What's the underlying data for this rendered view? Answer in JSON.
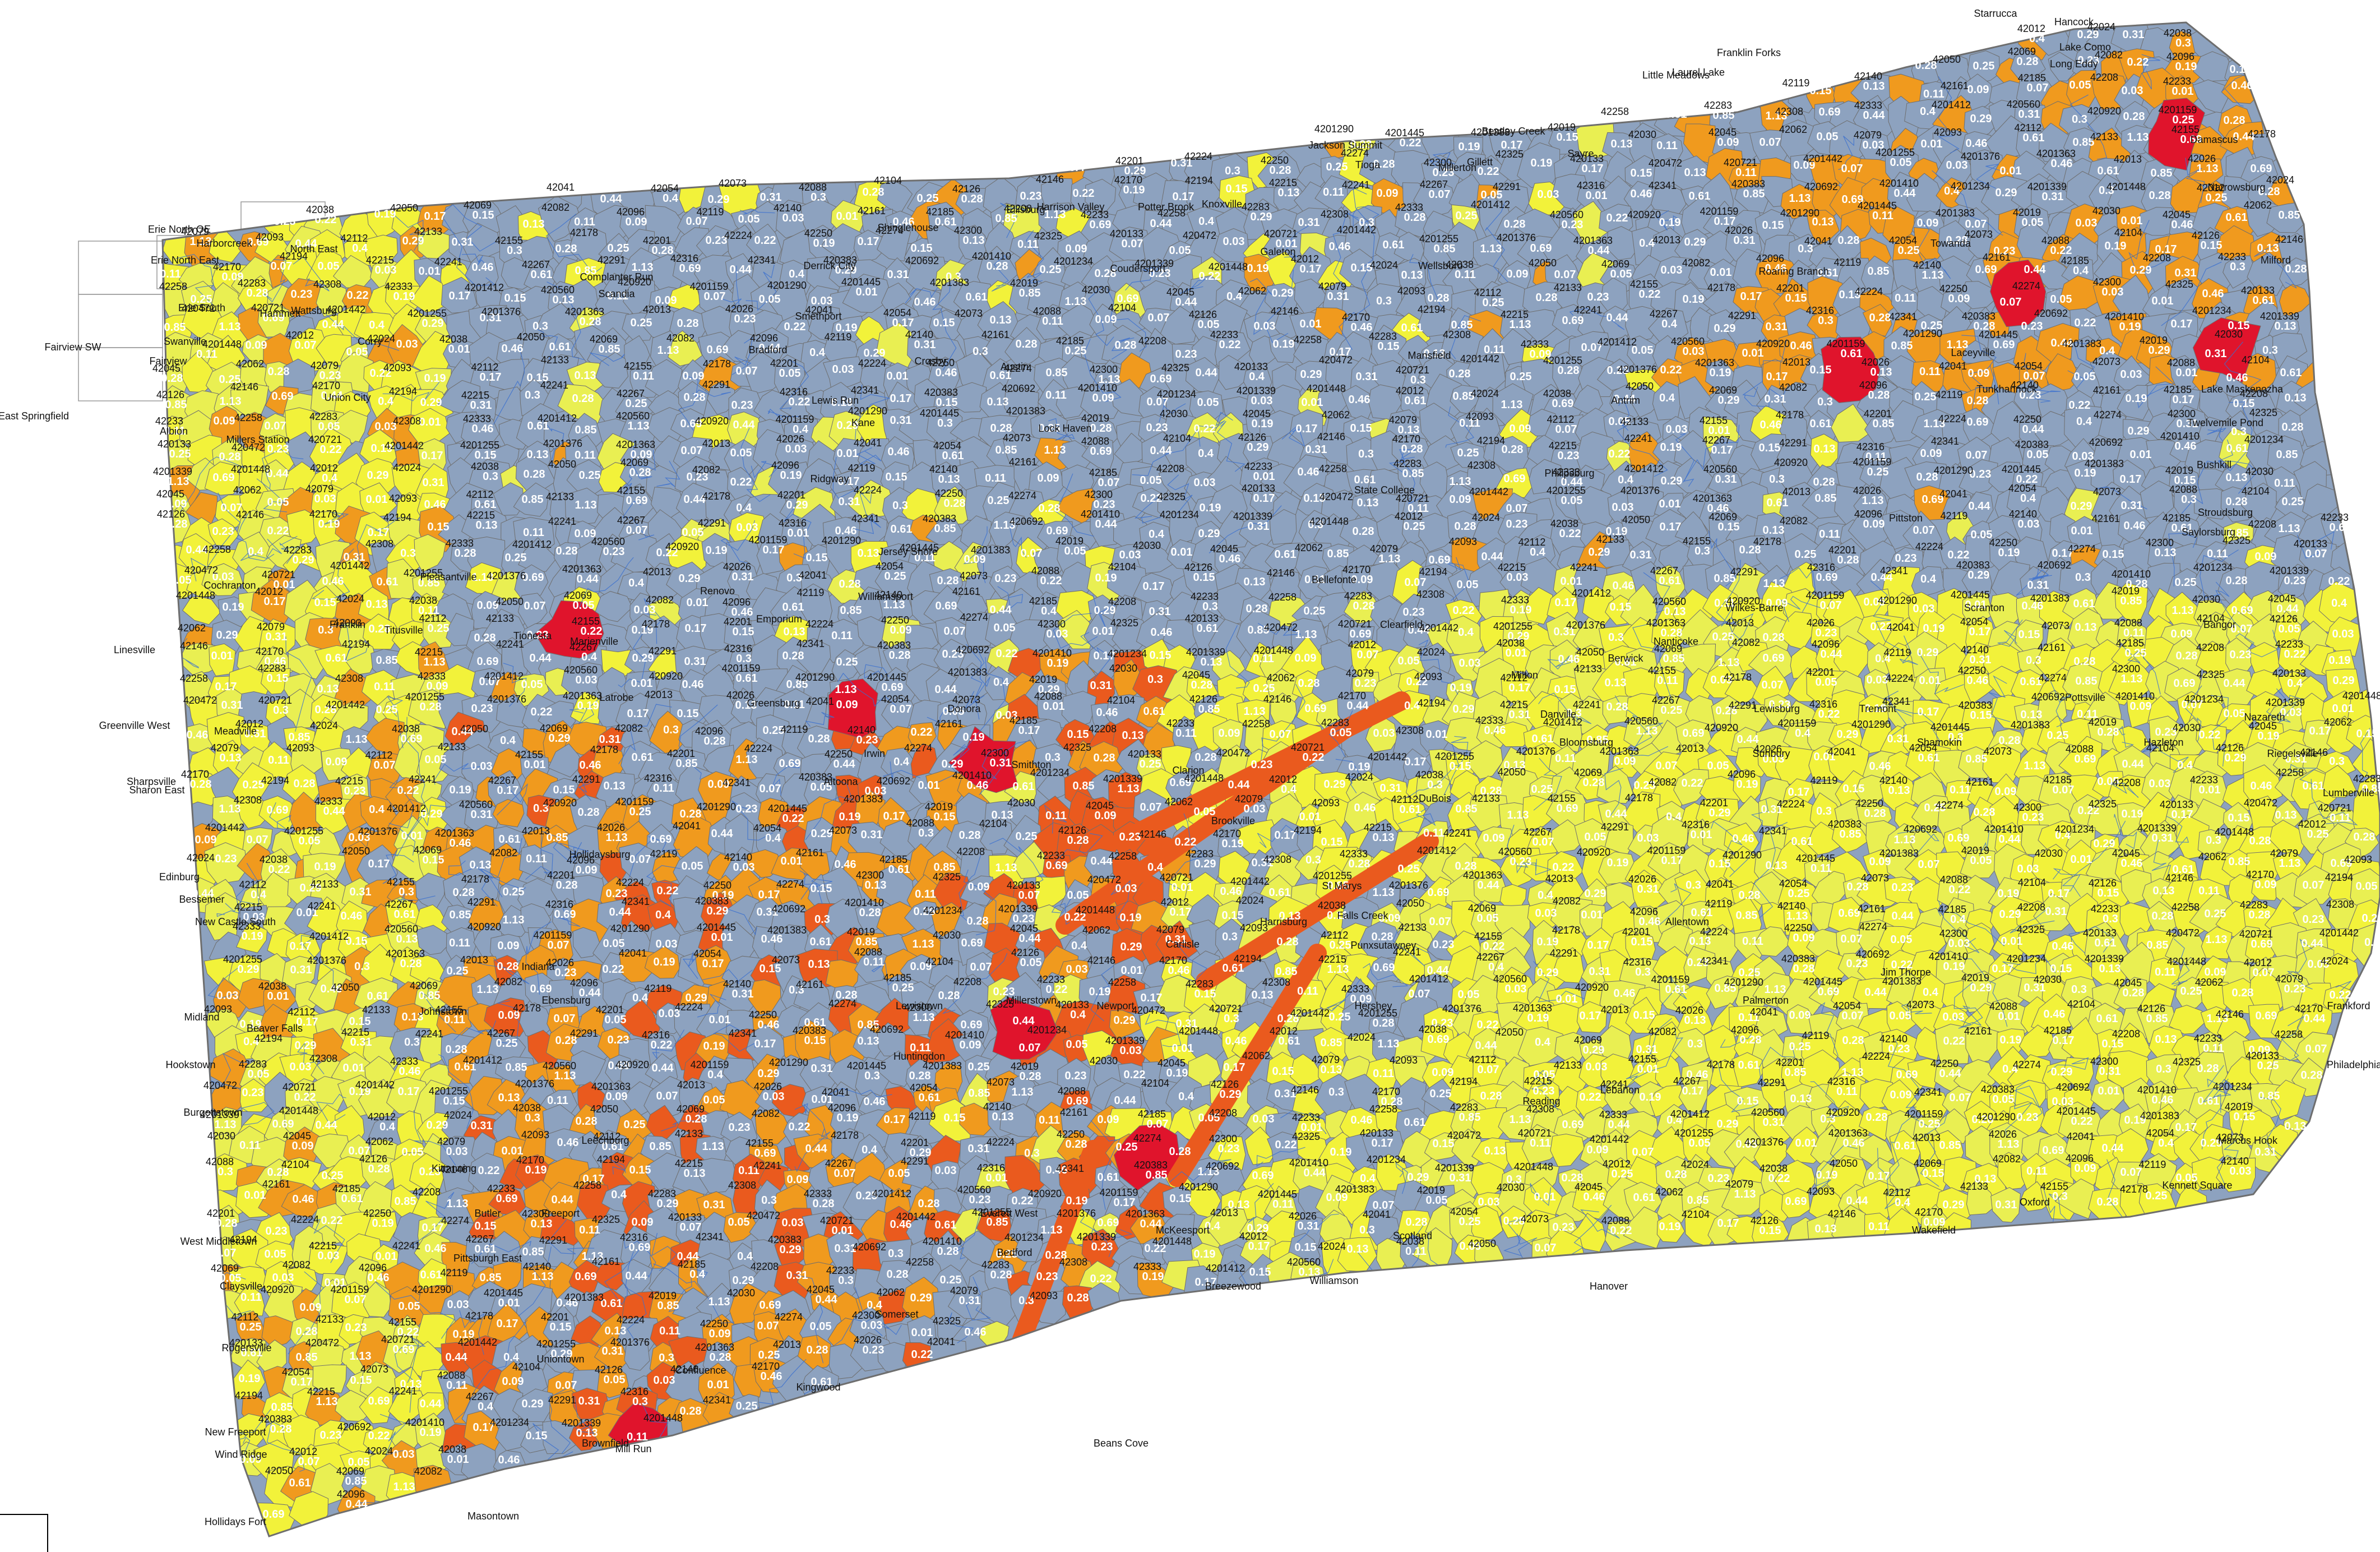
{
  "map": {
    "colors": {
      "background": "#ffffff",
      "outline": "#6e6e6e",
      "stream": "#3a6fd0",
      "class_grey": "#8da2bf",
      "class_yellow": "#f2f23a",
      "class_yellow_light": "#e9ef52",
      "class_orange": "#f09a1e",
      "class_orange_red": "#ea5a1e",
      "class_red": "#e0142c",
      "grid": "#9a9a9a"
    },
    "place_labels": [
      "Erie North OE",
      "Erie North East",
      "Harborcreek",
      "North East",
      "Erie South",
      "Fairview",
      "Fairview SW",
      "Swanville",
      "Hammett",
      "Wattsburg",
      "East Springfield",
      "Albion",
      "Millers Station",
      "Union City",
      "Corry",
      "Complanter Run",
      "Scandia",
      "Derrick City",
      "Shinglehouse",
      "Ellisburg",
      "Harrison Valley",
      "Potter Brook",
      "Knoxville",
      "Jackson Summit",
      "Tioga",
      "Millerton",
      "Gillett",
      "Bentley Creek",
      "Sayre",
      "Little Meadows",
      "Laurel Lake",
      "Franklin Forks",
      "Starrucca",
      "Hancock",
      "Lake Como",
      "Long Eddy",
      "Damascus",
      "Narrowsburg",
      "Milford",
      "Lake Maskenozha",
      "Twelvemile Pond",
      "Bushkill",
      "Stroudsburg",
      "Saylorsburg",
      "Bangor",
      "Nazareth",
      "Riegelsville",
      "Lumberville",
      "Frankford",
      "Philadelphia",
      "Marcus Hook",
      "Kennett Square",
      "Oxford",
      "Wakefield",
      "Hanover",
      "Williamson",
      "Scotland",
      "Breezewood",
      "Beans Cove",
      "Everett West",
      "Bedford",
      "Somerset",
      "Kingwood",
      "Confluence",
      "Brownfield",
      "Uniontown",
      "Mill Run",
      "Masontown",
      "Hollidays Fort",
      "New Freeport",
      "Wind Ridge",
      "Rogersville",
      "Claysville",
      "West Middletown",
      "Burgettstown",
      "Hookstown",
      "Midland",
      "Beaver Falls",
      "New Castle South",
      "Bessemer",
      "Edinburg",
      "Sharon East",
      "Sharpsville",
      "Greenville West",
      "Linesville",
      "Meadville",
      "Cochranton",
      "Franklin",
      "Titusville",
      "Pleasantville",
      "Tionesta",
      "Marienville",
      "Ridgway",
      "Kane",
      "Lewis Run",
      "Bradford",
      "Smethport",
      "Crosby",
      "Austin",
      "Coudersport",
      "Galeton",
      "Wellsboro",
      "Mansfield",
      "Antrim",
      "Roaring Branch",
      "Towanda",
      "Laceyville",
      "Tunkhannock",
      "Scranton",
      "Pittston",
      "Wilkes-Barre",
      "Nanticoke",
      "Berwick",
      "Bloomsburg",
      "Danville",
      "Milton",
      "Lewisburg",
      "Sunbury",
      "Shamokin",
      "Tremont",
      "Pottsville",
      "Hazleton",
      "Jim Thorpe",
      "Palmerton",
      "Allentown",
      "Reading",
      "Lebanon",
      "Hershey",
      "Harrisburg",
      "Carlisle",
      "Newport",
      "Millerstown",
      "Lewistown",
      "Huntingdon",
      "Altoona",
      "Hollidaysburg",
      "Johnstown",
      "Ebensburg",
      "Indiana",
      "Kittanning",
      "Butler",
      "Leechburg",
      "Freeport",
      "Pittsburgh East",
      "McKeesport",
      "Latrobe",
      "Greensburg",
      "Irwin",
      "Donora",
      "Smithton",
      "Clarion",
      "Brookville",
      "DuBois",
      "Clearfield",
      "Philipsburg",
      "Bellefonte",
      "State College",
      "Lock Haven",
      "Williamsport",
      "Jersey Shore",
      "Renovo",
      "Emporium",
      "St Marys",
      "Falls Creek",
      "Punxsutawney"
    ],
    "zone_values": [
      "0.4",
      "0.26",
      "0.29",
      "0.35",
      "0.31",
      "0.28",
      "0.3",
      "0.34",
      "0.28",
      "0.27",
      "0.25",
      "0.35",
      "0.28",
      "0.26",
      "0.23",
      "0.21",
      "0.22",
      "0.24",
      "0.19",
      "0.18",
      "0.17",
      "0.16",
      "0.15",
      "0.14",
      "0.13",
      "0.12",
      "0.11",
      "0.1",
      "0.09",
      "0.08",
      "0.07",
      "0.06",
      "0.05",
      "0.04",
      "0.03",
      "0.02",
      "0.01",
      "0.33",
      "0.46",
      "0.52",
      "0.61",
      "0.73",
      "0.85",
      "0.98",
      "1.13",
      "0.77",
      "0.69",
      "0.57",
      "0.44",
      "0.39"
    ],
    "zone_codes": [
      "42012",
      "42013",
      "42019",
      "42024",
      "42026",
      "42030",
      "42038",
      "42041",
      "42045",
      "42050",
      "42054",
      "42062",
      "42069",
      "42073",
      "42079",
      "42082",
      "42088",
      "42093",
      "42096",
      "42104",
      "42112",
      "42119",
      "42126",
      "42133",
      "42140",
      "42146",
      "42155",
      "42161",
      "42170",
      "42178",
      "42185",
      "42194",
      "42201",
      "42208",
      "42215",
      "42224",
      "42233",
      "42241",
      "42250",
      "42258",
      "42267",
      "42274",
      "42283",
      "42291",
      "42300",
      "42308",
      "42316",
      "42325",
      "42333",
      "42341",
      "420133",
      "4201412",
      "420383",
      "420472",
      "420560",
      "420692",
      "420721",
      "420920",
      "4201410",
      "4201442",
      "4201159",
      "4201234",
      "4201255",
      "4201290",
      "4201339",
      "4201376",
      "4201445",
      "4201448",
      "4201363",
      "4201383"
    ]
  }
}
